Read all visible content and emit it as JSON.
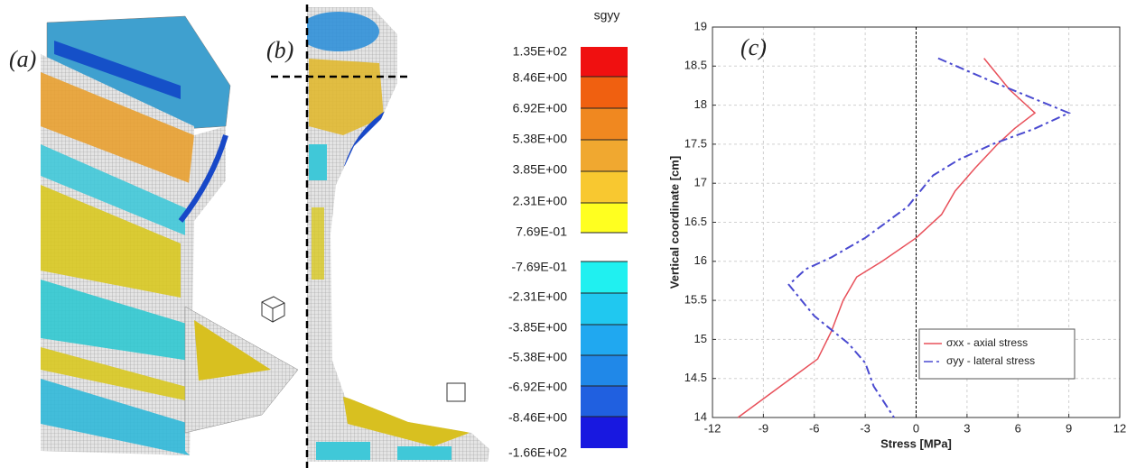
{
  "panels": {
    "a": "(a)",
    "b": "(b)"
  },
  "colorbar": {
    "title": "sgyy",
    "labels": [
      "1.35E+02",
      "8.46E+00",
      "6.92E+00",
      "5.38E+00",
      "3.85E+00",
      "2.31E+00",
      "7.69E-01",
      "-7.69E-01",
      "-2.31E+00",
      "-3.85E+00",
      "-5.38E+00",
      "-6.92E+00",
      "-8.46E+00",
      "-1.66E+02"
    ]
  },
  "chart_data": {
    "type": "line",
    "panel_label": "(c)",
    "x_label": "Stress [MPa]",
    "y_label": "Vertical coordinate [cm]",
    "xlim": [
      -12,
      12
    ],
    "xticks": [
      -12,
      -9,
      -6,
      -3,
      0,
      3,
      6,
      9,
      12
    ],
    "ylim": [
      14,
      19
    ],
    "yticks": [
      14,
      14.5,
      15,
      15.5,
      16,
      16.5,
      17,
      17.5,
      18,
      18.5,
      19
    ],
    "grid": true,
    "legend": "lower right",
    "series": [
      {
        "name": "σxx - axial stress",
        "color": "#e8505a",
        "dash": "solid",
        "x": [
          4,
          5.5,
          7,
          5.8,
          4.8,
          3.5,
          2.3,
          1.5,
          0,
          -2,
          -3.5,
          -4.3,
          -5,
          -5.8,
          -8,
          -10.5
        ],
        "y": [
          18.6,
          18.2,
          17.9,
          17.7,
          17.5,
          17.2,
          16.9,
          16.6,
          16.3,
          16,
          15.8,
          15.5,
          15.1,
          14.75,
          14.4,
          14
        ]
      },
      {
        "name": "σyy - lateral stress",
        "color": "#4a4ad0",
        "dash": "dashdot",
        "x": [
          1.3,
          4.5,
          9,
          7,
          4.5,
          2.5,
          1,
          -0.5,
          -3,
          -5,
          -6.5,
          -7.5,
          -6,
          -4,
          -3,
          -2.5,
          -1.3
        ],
        "y": [
          18.6,
          18.3,
          17.9,
          17.7,
          17.5,
          17.3,
          17.1,
          16.7,
          16.3,
          16.05,
          15.9,
          15.7,
          15.3,
          14.95,
          14.7,
          14.4,
          14
        ]
      }
    ]
  }
}
